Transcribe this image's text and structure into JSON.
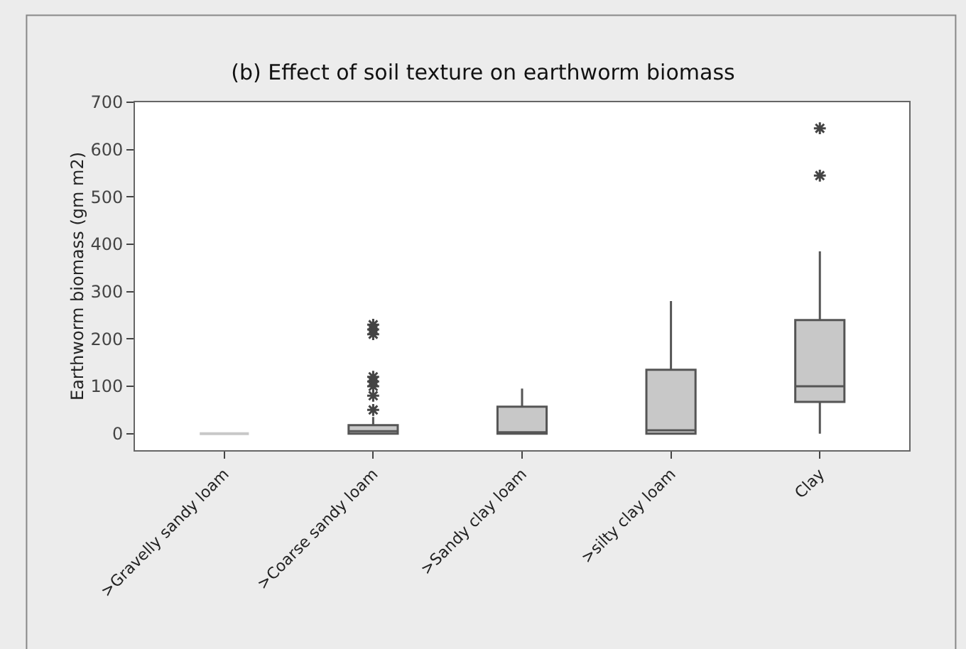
{
  "chart_data": {
    "type": "box",
    "title": "(b) Effect of soil texture on earthworm biomass",
    "ylabel": "Earthworm biomass (gm m2)",
    "categories": [
      ">Gravelly sandy loam",
      ">Coarse sandy loam",
      ">Sandy clay loam",
      ">silty clay loam",
      "Clay"
    ],
    "color": "#c8c8c8",
    "boxes": [
      {
        "low": 0,
        "q1": 0,
        "median": 0,
        "q3": 0,
        "high": 0
      },
      {
        "low": 0,
        "q1": 0,
        "median": 5,
        "q3": 18,
        "high": 35,
        "outliers": [
          50,
          80,
          100,
          110,
          120,
          210,
          220,
          230
        ]
      },
      {
        "low": 0,
        "q1": 0,
        "median": 0,
        "q3": 57,
        "high": 95
      },
      {
        "low": 0,
        "q1": 0,
        "median": 7,
        "q3": 135,
        "high": 280
      },
      {
        "low": 0,
        "q1": 67,
        "median": 100,
        "q3": 240,
        "high": 385,
        "outliers": [
          545,
          645
        ]
      }
    ],
    "ylim": [
      -35,
      700
    ],
    "yticks": [
      0,
      100,
      200,
      300,
      400,
      500,
      600,
      700
    ],
    "grid": false
  }
}
